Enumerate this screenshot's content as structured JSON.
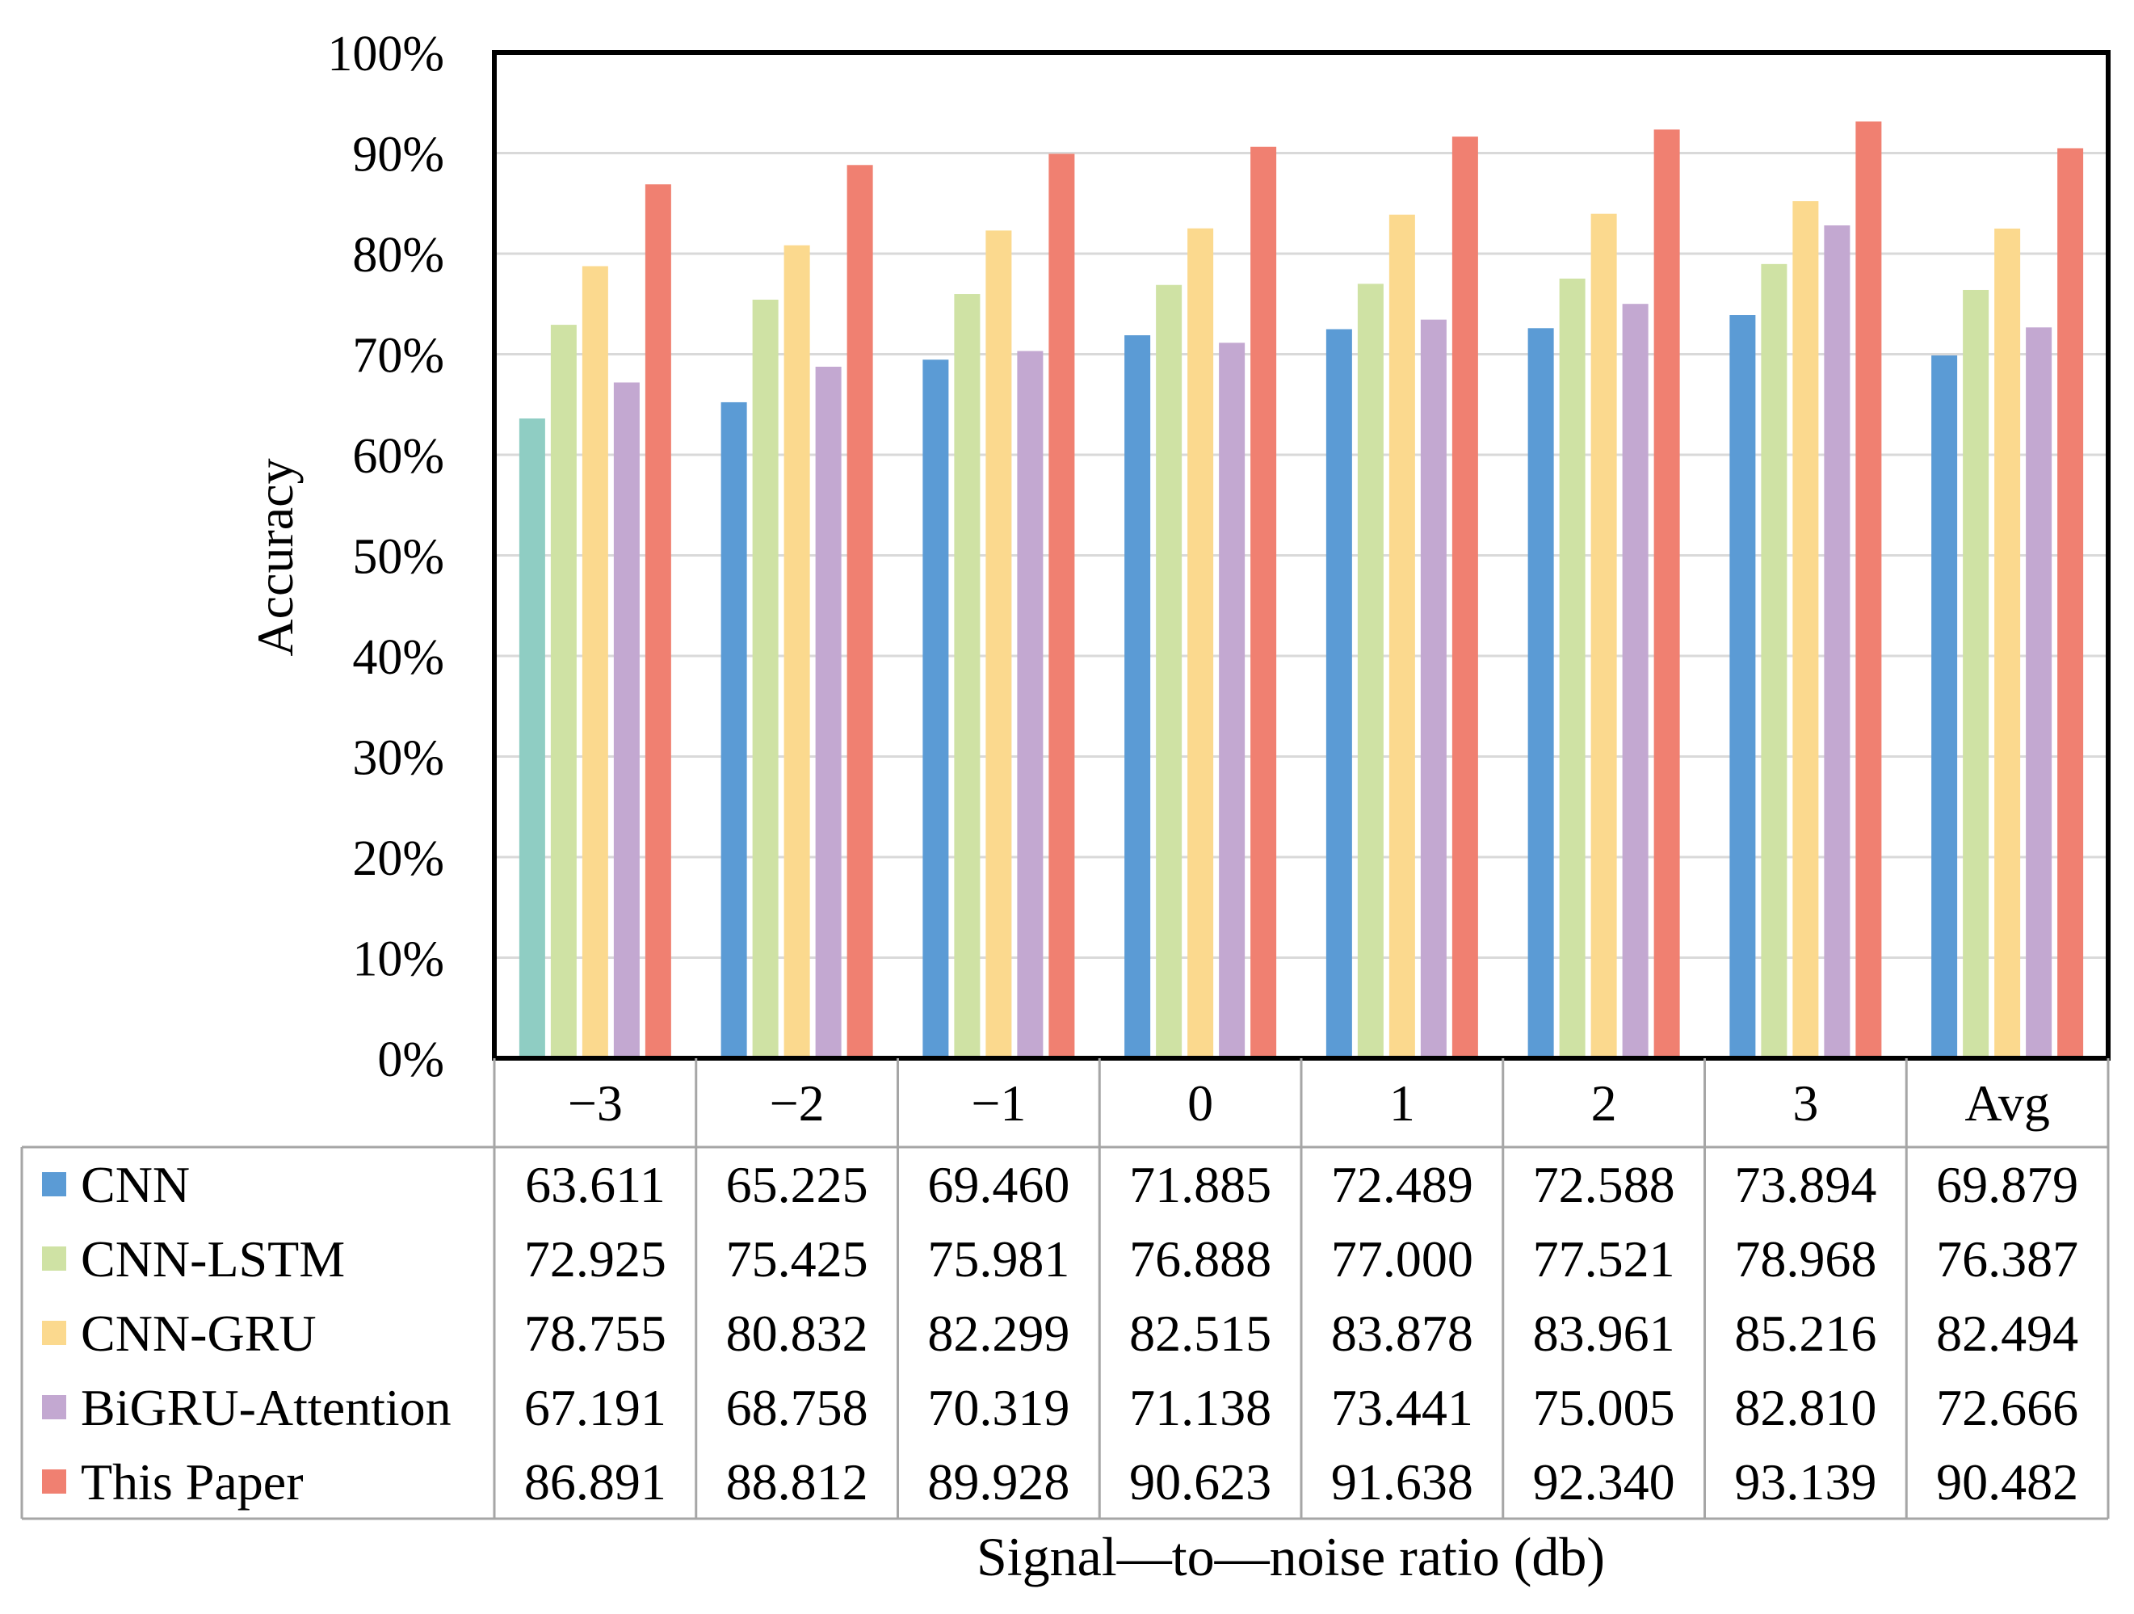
{
  "chart_data": {
    "type": "bar",
    "ylabel": "Accuracy",
    "xlabel": "Signal—to—noise ratio (db)",
    "ylim": [
      0,
      100
    ],
    "y_tick_values": [
      0,
      10,
      20,
      30,
      40,
      50,
      60,
      70,
      80,
      90,
      100
    ],
    "y_tick_labels": [
      "0%",
      "10%",
      "20%",
      "30%",
      "40%",
      "50%",
      "60%",
      "70%",
      "80%",
      "90%",
      "100%"
    ],
    "grid": true,
    "legend": "data-table-below",
    "categories": [
      "−3",
      "−2",
      "−1",
      "0",
      "1",
      "2",
      "3",
      "Avg"
    ],
    "series": [
      {
        "name": "CNN",
        "color": "#5b9bd5",
        "first_bar_color": "#8fcdc3",
        "values": [
          63.611,
          65.225,
          69.46,
          71.885,
          72.489,
          72.588,
          73.894,
          69.879
        ],
        "labels": [
          "63.611",
          "65.225",
          "69.460",
          "71.885",
          "72.489",
          "72.588",
          "73.894",
          "69.879"
        ]
      },
      {
        "name": "CNN-LSTM",
        "color": "#cfe2a4",
        "values": [
          72.925,
          75.425,
          75.981,
          76.888,
          77.0,
          77.521,
          78.968,
          76.387
        ],
        "labels": [
          "72.925",
          "75.425",
          "75.981",
          "76.888",
          "77.000",
          "77.521",
          "78.968",
          "76.387"
        ]
      },
      {
        "name": "CNN-GRU",
        "color": "#fbd98e",
        "values": [
          78.755,
          80.832,
          82.299,
          82.515,
          83.878,
          83.961,
          85.216,
          82.494
        ],
        "labels": [
          "78.755",
          "80.832",
          "82.299",
          "82.515",
          "83.878",
          "83.961",
          "85.216",
          "82.494"
        ]
      },
      {
        "name": "BiGRU-Attention",
        "color": "#c3a8d1",
        "values": [
          67.191,
          68.758,
          70.319,
          71.138,
          73.441,
          75.005,
          82.81,
          72.666
        ],
        "labels": [
          "67.191",
          "68.758",
          "70.319",
          "71.138",
          "73.441",
          "75.005",
          "82.810",
          "72.666"
        ]
      },
      {
        "name": "This Paper",
        "color": "#f08071",
        "values": [
          86.891,
          88.812,
          89.928,
          90.623,
          91.638,
          92.34,
          93.139,
          90.482
        ],
        "labels": [
          "86.891",
          "88.812",
          "89.928",
          "90.623",
          "91.638",
          "92.340",
          "93.139",
          "90.482"
        ]
      }
    ]
  }
}
